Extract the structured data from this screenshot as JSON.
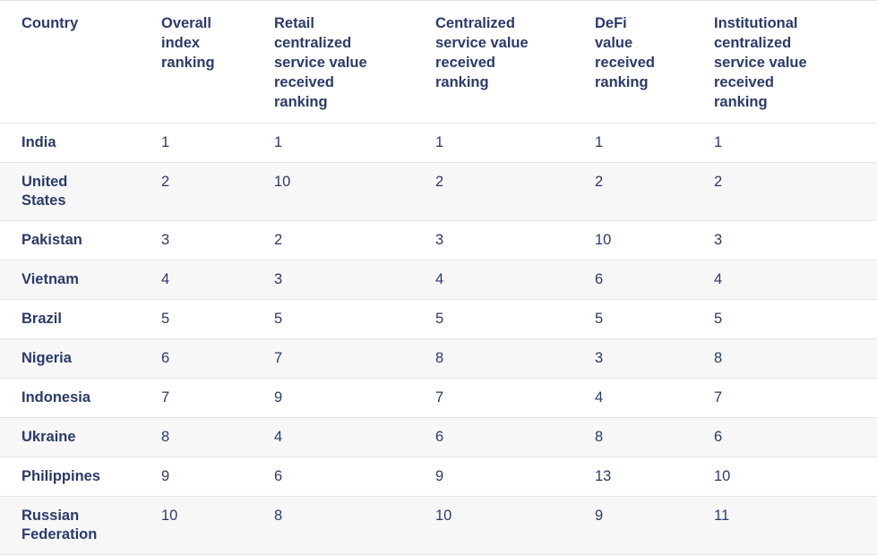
{
  "colors": {
    "text": "#2b3a6a",
    "stripe": "#f7f7f8",
    "border": "#e4e4e7",
    "bg": "#ffffff"
  },
  "table": {
    "columns": [
      {
        "id": "country",
        "label": "Country"
      },
      {
        "id": "overall_index_ranking",
        "label": "Overall\nindex\nranking"
      },
      {
        "id": "retail_centralized_service_value_received_ranking",
        "label": "Retail\ncentralized\nservice value\nreceived\nranking"
      },
      {
        "id": "centralized_service_value_received_ranking",
        "label": "Centralized\nservice value\nreceived\nranking"
      },
      {
        "id": "defi_value_received_ranking",
        "label": "DeFi\nvalue\nreceived\nranking"
      },
      {
        "id": "institutional_centralized_service_value_received_ranking",
        "label": "Institutional\ncentralized\nservice value\nreceived\nranking"
      }
    ],
    "rows": [
      {
        "country": "India",
        "values": [
          "1",
          "1",
          "1",
          "1",
          "1"
        ]
      },
      {
        "country": "United\nStates",
        "values": [
          "2",
          "10",
          "2",
          "2",
          "2"
        ]
      },
      {
        "country": "Pakistan",
        "values": [
          "3",
          "2",
          "3",
          "10",
          "3"
        ]
      },
      {
        "country": "Vietnam",
        "values": [
          "4",
          "3",
          "4",
          "6",
          "4"
        ]
      },
      {
        "country": "Brazil",
        "values": [
          "5",
          "5",
          "5",
          "5",
          "5"
        ]
      },
      {
        "country": "Nigeria",
        "values": [
          "6",
          "7",
          "8",
          "3",
          "8"
        ]
      },
      {
        "country": "Indonesia",
        "values": [
          "7",
          "9",
          "7",
          "4",
          "7"
        ]
      },
      {
        "country": "Ukraine",
        "values": [
          "8",
          "4",
          "6",
          "8",
          "6"
        ]
      },
      {
        "country": "Philippines",
        "values": [
          "9",
          "6",
          "9",
          "13",
          "10"
        ]
      },
      {
        "country": "Russian\nFederation",
        "values": [
          "10",
          "8",
          "10",
          "9",
          "11"
        ]
      }
    ]
  },
  "chart_data": {
    "type": "table",
    "title": "",
    "columns": [
      "Country",
      "Overall index ranking",
      "Retail centralized service value received ranking",
      "Centralized service value received ranking",
      "DeFi value received ranking",
      "Institutional centralized service value received ranking"
    ],
    "rows": [
      [
        "India",
        1,
        1,
        1,
        1,
        1
      ],
      [
        "United States",
        2,
        10,
        2,
        2,
        2
      ],
      [
        "Pakistan",
        3,
        2,
        3,
        10,
        3
      ],
      [
        "Vietnam",
        4,
        3,
        4,
        6,
        4
      ],
      [
        "Brazil",
        5,
        5,
        5,
        5,
        5
      ],
      [
        "Nigeria",
        6,
        7,
        8,
        3,
        8
      ],
      [
        "Indonesia",
        7,
        9,
        7,
        4,
        7
      ],
      [
        "Ukraine",
        8,
        4,
        6,
        8,
        6
      ],
      [
        "Philippines",
        9,
        6,
        9,
        13,
        10
      ],
      [
        "Russian Federation",
        10,
        8,
        10,
        9,
        11
      ]
    ],
    "layout_hints": {
      "striped_rows": "even rows shaded",
      "header_position": "top",
      "alignment": "left"
    }
  }
}
